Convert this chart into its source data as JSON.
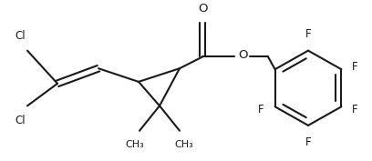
{
  "background_color": "#ffffff",
  "line_color": "#1a1a1a",
  "text_color": "#1a1a1a",
  "line_width": 1.5,
  "font_size": 8.5,
  "figsize": [
    4.08,
    1.77
  ],
  "dpi": 100,
  "xlim": [
    0,
    408
  ],
  "ylim": [
    0,
    177
  ]
}
